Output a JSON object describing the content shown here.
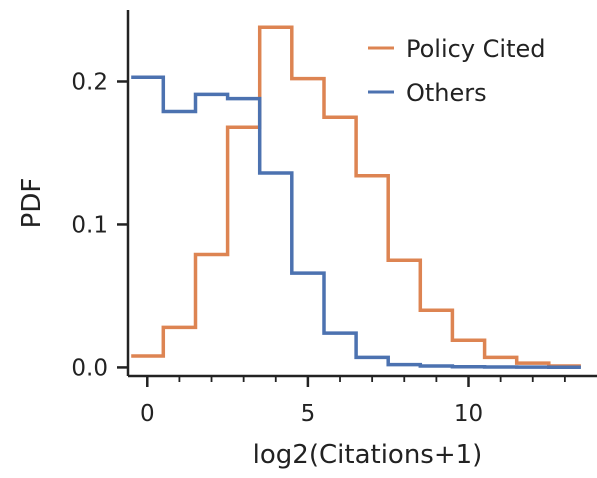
{
  "chart_data": {
    "type": "line",
    "title": "",
    "xlabel": "log2(Citations+1)",
    "ylabel": "PDF",
    "xlim": [
      -0.6,
      14
    ],
    "ylim": [
      -0.006,
      0.25
    ],
    "x_ticks": [
      0,
      5,
      10
    ],
    "x_tick_labels": [
      "0",
      "5",
      "10"
    ],
    "x_minor_ticks": [
      1,
      2,
      3,
      4,
      6,
      7,
      8,
      9,
      11,
      12,
      13
    ],
    "y_ticks": [
      0.0,
      0.1,
      0.2
    ],
    "y_tick_labels": [
      "0.0",
      "0.1",
      "0.2"
    ],
    "grid": false,
    "legend_position": "top-right",
    "bin_edges": [
      -0.5,
      0.5,
      1.5,
      2.5,
      3.5,
      4.5,
      5.5,
      6.5,
      7.5,
      8.5,
      9.5,
      10.5,
      11.5,
      12.5,
      13.5
    ],
    "series": [
      {
        "name": "Policy Cited",
        "color": "#dd8452",
        "values": [
          0.008,
          0.028,
          0.079,
          0.168,
          0.238,
          0.202,
          0.175,
          0.134,
          0.075,
          0.04,
          0.019,
          0.007,
          0.003,
          0.001
        ]
      },
      {
        "name": "Others",
        "color": "#4c72b0",
        "values": [
          0.203,
          0.179,
          0.191,
          0.188,
          0.136,
          0.066,
          0.024,
          0.007,
          0.002,
          0.001,
          0.0005,
          0.0003,
          0.0002,
          0.0001
        ]
      }
    ]
  }
}
